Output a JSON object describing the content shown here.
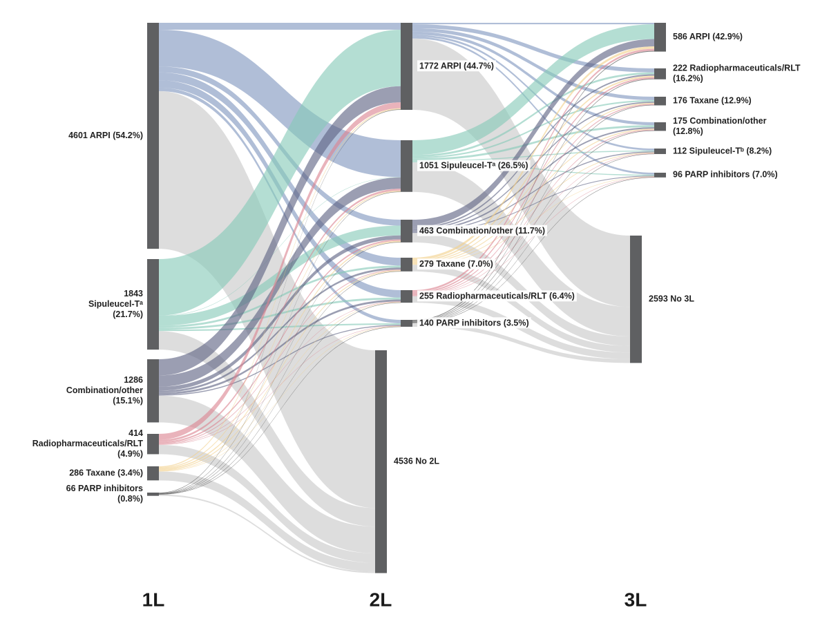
{
  "chart_data": {
    "type": "sankey",
    "columns": [
      "1L",
      "2L",
      "3L"
    ],
    "node_color": "#5f6062",
    "nodes": [
      {
        "label": [
          "4601 ARPI (54.2%)"
        ],
        "value": 4601,
        "column": 0
      },
      {
        "label": [
          "1843",
          "Sipuleucel-Tᵃ",
          "(21.7%)"
        ],
        "value": 1843,
        "column": 0
      },
      {
        "label": [
          "1286",
          "Combination/other",
          "(15.1%)"
        ],
        "value": 1286,
        "column": 0
      },
      {
        "label": [
          "414",
          "Radiopharmaceuticals/RLT",
          "(4.9%)"
        ],
        "value": 414,
        "column": 0
      },
      {
        "label": [
          "286 Taxane (3.4%)"
        ],
        "value": 286,
        "column": 0
      },
      {
        "label": [
          "66 PARP inhibitors",
          "(0.8%)"
        ],
        "value": 66,
        "column": 0
      },
      {
        "label": [
          "1772 ARPI (44.7%)"
        ],
        "value": 1772,
        "column": 1
      },
      {
        "label": [
          "1051 Sipuleucel-Tᵃ (26.5%)"
        ],
        "value": 1051,
        "column": 1
      },
      {
        "label": [
          "463 Combination/other (11.7%)"
        ],
        "value": 463,
        "column": 1
      },
      {
        "label": [
          "279 Taxane (7.0%)"
        ],
        "value": 279,
        "column": 1
      },
      {
        "label": [
          "255 Radiopharmaceuticals/RLT (6.4%)"
        ],
        "value": 255,
        "column": 1
      },
      {
        "label": [
          "140 PARP inhibitors (3.5%)"
        ],
        "value": 140,
        "column": 1
      },
      {
        "label": [
          "4536 No 2L"
        ],
        "value": 4536,
        "column": 1
      },
      {
        "label": [
          "586 ARPI (42.9%)"
        ],
        "value": 586,
        "column": 2
      },
      {
        "label": [
          "222 Radiopharmaceuticals/RLT",
          "(16.2%)"
        ],
        "value": 222,
        "column": 2
      },
      {
        "label": [
          "176 Taxane (12.9%)"
        ],
        "value": 176,
        "column": 2
      },
      {
        "label": [
          "175 Combination/other",
          "(12.8%)"
        ],
        "value": 175,
        "column": 2
      },
      {
        "label": [
          "112 Sipuleucel-Tᵇ (8.2%)"
        ],
        "value": 112,
        "column": 2
      },
      {
        "label": [
          "96 PARP inhibitors (7.0%)"
        ],
        "value": 96,
        "column": 2
      },
      {
        "label": [
          "2593 No 3L"
        ],
        "value": 2593,
        "column": 2
      }
    ],
    "links": [
      {
        "source": 0,
        "target": 6,
        "value": 140,
        "color": "#7f96bf"
      },
      {
        "source": 0,
        "target": 7,
        "value": 750,
        "color": "#7f96bf"
      },
      {
        "source": 0,
        "target": 8,
        "value": 120,
        "color": "#7f96bf"
      },
      {
        "source": 0,
        "target": 9,
        "value": 160,
        "color": "#7f96bf"
      },
      {
        "source": 0,
        "target": 10,
        "value": 150,
        "color": "#7f96bf"
      },
      {
        "source": 0,
        "target": 11,
        "value": 70,
        "color": "#7f96bf"
      },
      {
        "source": 0,
        "target": 12,
        "value": 3211,
        "color": "#c8c8c8"
      },
      {
        "source": 1,
        "target": 6,
        "value": 1150,
        "color": "#86c9b8"
      },
      {
        "source": 1,
        "target": 7,
        "value": 6,
        "color": "#86c9b8"
      },
      {
        "source": 1,
        "target": 8,
        "value": 200,
        "color": "#86c9b8"
      },
      {
        "source": 1,
        "target": 9,
        "value": 40,
        "color": "#86c9b8"
      },
      {
        "source": 1,
        "target": 10,
        "value": 40,
        "color": "#86c9b8"
      },
      {
        "source": 1,
        "target": 11,
        "value": 30,
        "color": "#86c9b8"
      },
      {
        "source": 1,
        "target": 12,
        "value": 377,
        "color": "#c8c8c8"
      },
      {
        "source": 2,
        "target": 6,
        "value": 330,
        "color": "#5d6383"
      },
      {
        "source": 2,
        "target": 7,
        "value": 230,
        "color": "#5d6383"
      },
      {
        "source": 2,
        "target": 8,
        "value": 80,
        "color": "#5d6383"
      },
      {
        "source": 2,
        "target": 9,
        "value": 40,
        "color": "#5d6383"
      },
      {
        "source": 2,
        "target": 10,
        "value": 40,
        "color": "#5d6383"
      },
      {
        "source": 2,
        "target": 11,
        "value": 20,
        "color": "#5d6383"
      },
      {
        "source": 2,
        "target": 12,
        "value": 546,
        "color": "#c8c8c8"
      },
      {
        "source": 3,
        "target": 6,
        "value": 120,
        "color": "#dc8592"
      },
      {
        "source": 3,
        "target": 7,
        "value": 40,
        "color": "#dc8592"
      },
      {
        "source": 3,
        "target": 8,
        "value": 30,
        "color": "#dc8592"
      },
      {
        "source": 3,
        "target": 9,
        "value": 15,
        "color": "#dc8592"
      },
      {
        "source": 3,
        "target": 10,
        "value": 10,
        "color": "#dc8592"
      },
      {
        "source": 3,
        "target": 11,
        "value": 8,
        "color": "#dc8592"
      },
      {
        "source": 3,
        "target": 12,
        "value": 191,
        "color": "#c8c8c8"
      },
      {
        "source": 4,
        "target": 6,
        "value": 22,
        "color": "#f2d18a"
      },
      {
        "source": 4,
        "target": 7,
        "value": 20,
        "color": "#f2d18a"
      },
      {
        "source": 4,
        "target": 8,
        "value": 25,
        "color": "#f2d18a"
      },
      {
        "source": 4,
        "target": 9,
        "value": 20,
        "color": "#f2d18a"
      },
      {
        "source": 4,
        "target": 10,
        "value": 10,
        "color": "#f2d18a"
      },
      {
        "source": 4,
        "target": 11,
        "value": 8,
        "color": "#f2d18a"
      },
      {
        "source": 4,
        "target": 12,
        "value": 181,
        "color": "#c8c8c8"
      },
      {
        "source": 5,
        "target": 6,
        "value": 10,
        "color": "#3e3e3e"
      },
      {
        "source": 5,
        "target": 7,
        "value": 5,
        "color": "#3e3e3e"
      },
      {
        "source": 5,
        "target": 8,
        "value": 8,
        "color": "#3e3e3e"
      },
      {
        "source": 5,
        "target": 9,
        "value": 4,
        "color": "#3e3e3e"
      },
      {
        "source": 5,
        "target": 10,
        "value": 5,
        "color": "#3e3e3e"
      },
      {
        "source": 5,
        "target": 11,
        "value": 4,
        "color": "#3e3e3e"
      },
      {
        "source": 5,
        "target": 12,
        "value": 30,
        "color": "#c8c8c8"
      },
      {
        "source": 6,
        "target": 13,
        "value": 30,
        "color": "#7f96bf"
      },
      {
        "source": 6,
        "target": 14,
        "value": 80,
        "color": "#7f96bf"
      },
      {
        "source": 6,
        "target": 15,
        "value": 70,
        "color": "#7f96bf"
      },
      {
        "source": 6,
        "target": 16,
        "value": 60,
        "color": "#7f96bf"
      },
      {
        "source": 6,
        "target": 17,
        "value": 40,
        "color": "#7f96bf"
      },
      {
        "source": 6,
        "target": 18,
        "value": 40,
        "color": "#7f96bf"
      },
      {
        "source": 6,
        "target": 19,
        "value": 1452,
        "color": "#c8c8c8"
      },
      {
        "source": 7,
        "target": 13,
        "value": 300,
        "color": "#86c9b8"
      },
      {
        "source": 7,
        "target": 14,
        "value": 40,
        "color": "#86c9b8"
      },
      {
        "source": 7,
        "target": 15,
        "value": 30,
        "color": "#86c9b8"
      },
      {
        "source": 7,
        "target": 16,
        "value": 40,
        "color": "#86c9b8"
      },
      {
        "source": 7,
        "target": 17,
        "value": 20,
        "color": "#86c9b8"
      },
      {
        "source": 7,
        "target": 18,
        "value": 20,
        "color": "#86c9b8"
      },
      {
        "source": 7,
        "target": 19,
        "value": 601,
        "color": "#c8c8c8"
      },
      {
        "source": 8,
        "target": 13,
        "value": 150,
        "color": "#5d6383"
      },
      {
        "source": 8,
        "target": 14,
        "value": 30,
        "color": "#5d6383"
      },
      {
        "source": 8,
        "target": 15,
        "value": 25,
        "color": "#5d6383"
      },
      {
        "source": 8,
        "target": 16,
        "value": 30,
        "color": "#5d6383"
      },
      {
        "source": 8,
        "target": 17,
        "value": 20,
        "color": "#5d6383"
      },
      {
        "source": 8,
        "target": 18,
        "value": 15,
        "color": "#5d6383"
      },
      {
        "source": 8,
        "target": 19,
        "value": 193,
        "color": "#c8c8c8"
      },
      {
        "source": 9,
        "target": 13,
        "value": 50,
        "color": "#f2d18a"
      },
      {
        "source": 9,
        "target": 14,
        "value": 30,
        "color": "#f2d18a"
      },
      {
        "source": 9,
        "target": 15,
        "value": 20,
        "color": "#f2d18a"
      },
      {
        "source": 9,
        "target": 16,
        "value": 20,
        "color": "#f2d18a"
      },
      {
        "source": 9,
        "target": 17,
        "value": 15,
        "color": "#f2d18a"
      },
      {
        "source": 9,
        "target": 18,
        "value": 10,
        "color": "#f2d18a"
      },
      {
        "source": 9,
        "target": 19,
        "value": 134,
        "color": "#c8c8c8"
      },
      {
        "source": 10,
        "target": 13,
        "value": 40,
        "color": "#dc8592"
      },
      {
        "source": 10,
        "target": 14,
        "value": 30,
        "color": "#dc8592"
      },
      {
        "source": 10,
        "target": 15,
        "value": 20,
        "color": "#dc8592"
      },
      {
        "source": 10,
        "target": 16,
        "value": 15,
        "color": "#dc8592"
      },
      {
        "source": 10,
        "target": 17,
        "value": 10,
        "color": "#dc8592"
      },
      {
        "source": 10,
        "target": 18,
        "value": 6,
        "color": "#dc8592"
      },
      {
        "source": 10,
        "target": 19,
        "value": 134,
        "color": "#c8c8c8"
      },
      {
        "source": 11,
        "target": 13,
        "value": 16,
        "color": "#3e3e3e"
      },
      {
        "source": 11,
        "target": 14,
        "value": 12,
        "color": "#3e3e3e"
      },
      {
        "source": 11,
        "target": 15,
        "value": 11,
        "color": "#3e3e3e"
      },
      {
        "source": 11,
        "target": 16,
        "value": 10,
        "color": "#3e3e3e"
      },
      {
        "source": 11,
        "target": 17,
        "value": 7,
        "color": "#3e3e3e"
      },
      {
        "source": 11,
        "target": 18,
        "value": 5,
        "color": "#3e3e3e"
      },
      {
        "source": 11,
        "target": 19,
        "value": 79,
        "color": "#c8c8c8"
      }
    ]
  }
}
